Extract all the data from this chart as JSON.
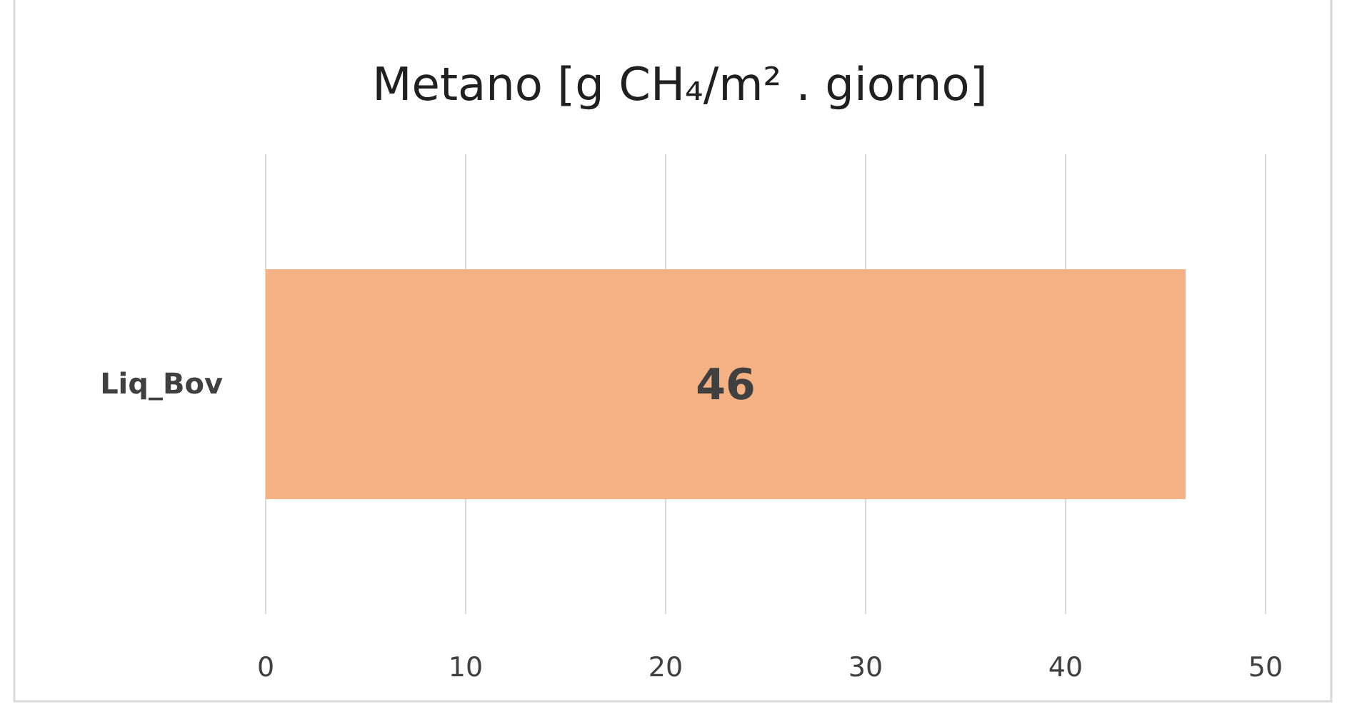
{
  "chart_data": {
    "type": "bar",
    "orientation": "horizontal",
    "title": "Metano [g CH₄/m² . giorno]",
    "categories": [
      "Liq_Bov"
    ],
    "values": [
      46
    ],
    "color": "#f4b183",
    "xlim": [
      0,
      50
    ],
    "xticks": [
      0,
      10,
      20,
      30,
      40,
      50
    ],
    "grid": "x",
    "data_labels": true
  }
}
